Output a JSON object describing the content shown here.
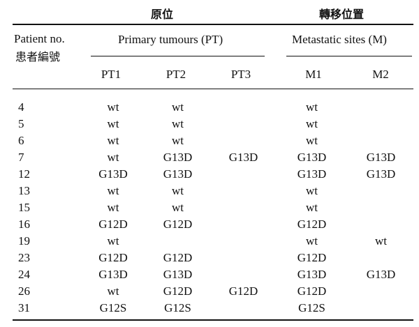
{
  "header": {
    "original_site_zh": "原位",
    "transfer_site_zh": "轉移位置",
    "patient_label_en": "Patient no.",
    "patient_label_zh": "患者編號",
    "primary_group": "Primary tumours (PT)",
    "metastatic_group": "Metastatic sites (M)",
    "columns": [
      "PT1",
      "PT2",
      "PT3",
      "M1",
      "M2"
    ]
  },
  "rows": [
    {
      "patient": "4",
      "pt1": "wt",
      "pt2": "wt",
      "pt3": "",
      "m1": "wt",
      "m2": ""
    },
    {
      "patient": "5",
      "pt1": "wt",
      "pt2": "wt",
      "pt3": "",
      "m1": "wt",
      "m2": ""
    },
    {
      "patient": "6",
      "pt1": "wt",
      "pt2": "wt",
      "pt3": "",
      "m1": "wt",
      "m2": ""
    },
    {
      "patient": "7",
      "pt1": "wt",
      "pt2": "G13D",
      "pt3": "G13D",
      "m1": "G13D",
      "m2": "G13D"
    },
    {
      "patient": "12",
      "pt1": "G13D",
      "pt2": "G13D",
      "pt3": "",
      "m1": "G13D",
      "m2": "G13D"
    },
    {
      "patient": "13",
      "pt1": "wt",
      "pt2": "wt",
      "pt3": "",
      "m1": "wt",
      "m2": ""
    },
    {
      "patient": "15",
      "pt1": "wt",
      "pt2": "wt",
      "pt3": "",
      "m1": "wt",
      "m2": ""
    },
    {
      "patient": "16",
      "pt1": "G12D",
      "pt2": "G12D",
      "pt3": "",
      "m1": "G12D",
      "m2": ""
    },
    {
      "patient": "19",
      "pt1": "wt",
      "pt2": "",
      "pt3": "",
      "m1": "wt",
      "m2": "wt"
    },
    {
      "patient": "23",
      "pt1": "G12D",
      "pt2": "G12D",
      "pt3": "",
      "m1": "G12D",
      "m2": ""
    },
    {
      "patient": "24",
      "pt1": "G13D",
      "pt2": "G13D",
      "pt3": "",
      "m1": "G13D",
      "m2": "G13D"
    },
    {
      "patient": "26",
      "pt1": "wt",
      "pt2": "G12D",
      "pt3": "G12D",
      "m1": "G12D",
      "m2": ""
    },
    {
      "patient": "31",
      "pt1": "G12S",
      "pt2": "G12S",
      "pt3": "",
      "m1": "G12S",
      "m2": ""
    }
  ]
}
